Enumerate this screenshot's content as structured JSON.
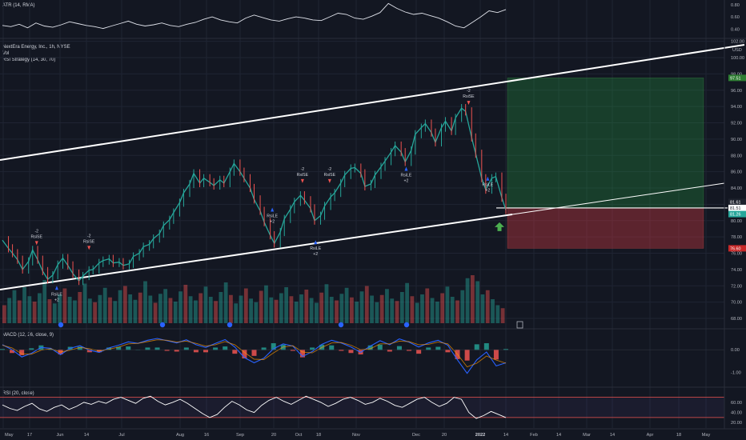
{
  "chart_data": {
    "type": "line",
    "symbol": "NextEra Energy, Inc., 1h, NYSE",
    "currency": "USD",
    "overlays": [
      "Vol",
      "RSI Strategy (14, 30, 70)"
    ],
    "price_axis": {
      "ticks": [
        "102.00",
        "100.00",
        "98.00",
        "96.00",
        "94.00",
        "92.00",
        "90.00",
        "88.00",
        "86.00",
        "84.00",
        "82.00",
        "80.00",
        "78.00",
        "76.00",
        "74.00",
        "72.00",
        "70.00",
        "68.00"
      ],
      "ylim": [
        66.5,
        103.2
      ]
    },
    "price_labels": {
      "target": "97.51",
      "entry_a": "81.61",
      "entry_b": "81.51",
      "current": "81.26",
      "stop": "76.60"
    },
    "time_axis": [
      "May",
      "17",
      "Jun",
      "14",
      "Jul",
      "Aug",
      "16",
      "Sep",
      "20",
      "Oct",
      "18",
      "Nov",
      "Dec",
      "20",
      "2022",
      "14",
      "Feb",
      "14",
      "Mar",
      "14",
      "Apr",
      "18",
      "May"
    ],
    "price_series": [
      {
        "t": 0,
        "v": 77.6
      },
      {
        "t": 0.6,
        "v": 76.6
      },
      {
        "t": 1,
        "v": 76.0
      },
      {
        "t": 1.5,
        "v": 75.2
      },
      {
        "t": 2,
        "v": 74.0
      },
      {
        "t": 2.6,
        "v": 75.0
      },
      {
        "t": 3,
        "v": 76.4
      },
      {
        "t": 3.5,
        "v": 75.2
      },
      {
        "t": 4,
        "v": 73.8
      },
      {
        "t": 4.5,
        "v": 72.8
      },
      {
        "t": 5,
        "v": 73.3
      },
      {
        "t": 5.5,
        "v": 74.6
      },
      {
        "t": 6,
        "v": 75.4
      },
      {
        "t": 6.5,
        "v": 74.5
      },
      {
        "t": 7,
        "v": 73.5
      },
      {
        "t": 7.6,
        "v": 72.6
      },
      {
        "t": 8,
        "v": 73.2
      },
      {
        "t": 8.6,
        "v": 73.9
      },
      {
        "t": 9,
        "v": 74.0
      },
      {
        "t": 9.6,
        "v": 74.8
      },
      {
        "t": 10,
        "v": 75.1
      },
      {
        "t": 10.6,
        "v": 75.3
      },
      {
        "t": 11,
        "v": 74.8
      },
      {
        "t": 11.6,
        "v": 74.9
      },
      {
        "t": 12,
        "v": 74.5
      },
      {
        "t": 12.6,
        "v": 74.7
      },
      {
        "t": 13,
        "v": 75.6
      },
      {
        "t": 13.6,
        "v": 76.0
      },
      {
        "t": 14,
        "v": 76.8
      },
      {
        "t": 14.6,
        "v": 77.1
      },
      {
        "t": 15,
        "v": 77.8
      },
      {
        "t": 15.6,
        "v": 78.4
      },
      {
        "t": 16,
        "v": 79.4
      },
      {
        "t": 16.6,
        "v": 80.1
      },
      {
        "t": 17,
        "v": 81.0
      },
      {
        "t": 17.6,
        "v": 82.2
      },
      {
        "t": 18,
        "v": 83.4
      },
      {
        "t": 18.6,
        "v": 84.5
      },
      {
        "t": 19,
        "v": 85.8
      },
      {
        "t": 19.6,
        "v": 84.6
      },
      {
        "t": 20,
        "v": 85.2
      },
      {
        "t": 20.6,
        "v": 84.7
      },
      {
        "t": 21,
        "v": 84.3
      },
      {
        "t": 21.6,
        "v": 85.0
      },
      {
        "t": 22,
        "v": 84.6
      },
      {
        "t": 22.6,
        "v": 86.0
      },
      {
        "t": 23,
        "v": 87.0
      },
      {
        "t": 23.6,
        "v": 86.0
      },
      {
        "t": 24,
        "v": 85.2
      },
      {
        "t": 24.6,
        "v": 84.0
      },
      {
        "t": 25,
        "v": 82.6
      },
      {
        "t": 25.6,
        "v": 81.2
      },
      {
        "t": 26,
        "v": 79.8
      },
      {
        "t": 26.6,
        "v": 78.2
      },
      {
        "t": 27,
        "v": 77.2
      },
      {
        "t": 27.6,
        "v": 78.6
      },
      {
        "t": 28,
        "v": 80.2
      },
      {
        "t": 28.6,
        "v": 81.4
      },
      {
        "t": 29,
        "v": 82.3
      },
      {
        "t": 29.6,
        "v": 83.1
      },
      {
        "t": 30,
        "v": 82.5
      },
      {
        "t": 30.6,
        "v": 81.5
      },
      {
        "t": 31,
        "v": 80.0
      },
      {
        "t": 31.6,
        "v": 80.6
      },
      {
        "t": 32,
        "v": 81.8
      },
      {
        "t": 32.6,
        "v": 82.9
      },
      {
        "t": 33,
        "v": 83.4
      },
      {
        "t": 33.6,
        "v": 84.6
      },
      {
        "t": 34,
        "v": 85.6
      },
      {
        "t": 34.6,
        "v": 86.4
      },
      {
        "t": 35,
        "v": 86.5
      },
      {
        "t": 35.6,
        "v": 85.8
      },
      {
        "t": 36,
        "v": 84.2
      },
      {
        "t": 36.6,
        "v": 84.5
      },
      {
        "t": 37,
        "v": 85.6
      },
      {
        "t": 37.6,
        "v": 86.6
      },
      {
        "t": 38,
        "v": 87.3
      },
      {
        "t": 38.6,
        "v": 88.4
      },
      {
        "t": 39,
        "v": 89.2
      },
      {
        "t": 39.6,
        "v": 88.4
      },
      {
        "t": 40,
        "v": 87.2
      },
      {
        "t": 40.6,
        "v": 88.6
      },
      {
        "t": 41,
        "v": 90.6
      },
      {
        "t": 41.6,
        "v": 91.4
      },
      {
        "t": 42,
        "v": 91.9
      },
      {
        "t": 42.6,
        "v": 90.8
      },
      {
        "t": 43,
        "v": 89.6
      },
      {
        "t": 43.6,
        "v": 91.4
      },
      {
        "t": 44,
        "v": 92.2
      },
      {
        "t": 44.6,
        "v": 91.0
      },
      {
        "t": 45,
        "v": 92.6
      },
      {
        "t": 45.6,
        "v": 93.8
      },
      {
        "t": 46,
        "v": 93.4
      },
      {
        "t": 46.6,
        "v": 90.2
      },
      {
        "t": 47,
        "v": 88.2
      },
      {
        "t": 47.6,
        "v": 85.2
      },
      {
        "t": 48,
        "v": 83.8
      },
      {
        "t": 48.6,
        "v": 85.2
      },
      {
        "t": 49,
        "v": 85.4
      },
      {
        "t": 49.6,
        "v": 82.8
      },
      {
        "t": 50,
        "v": 81.3
      }
    ],
    "signals": [
      {
        "label": "-2\nRsiSE",
        "kind": "short",
        "t": 3.4,
        "v": 77.0
      },
      {
        "label": "RsiLE\n+2",
        "kind": "long",
        "t": 5.4,
        "v": 72.0
      },
      {
        "label": "-2\nRsiSE",
        "kind": "short",
        "t": 8.6,
        "v": 76.4
      },
      {
        "label": "RsiLE\n+2",
        "kind": "long",
        "t": 26.8,
        "v": 81.6
      },
      {
        "label": "-2\nRsiSE",
        "kind": "short",
        "t": 29.8,
        "v": 84.6
      },
      {
        "label": "RsiLE\n+2",
        "kind": "long",
        "t": 31.1,
        "v": 77.6
      },
      {
        "label": "-2\nRsiSE",
        "kind": "short",
        "t": 32.5,
        "v": 84.6
      },
      {
        "label": "RsiLE\n+2",
        "kind": "long",
        "t": 40.1,
        "v": 86.6
      },
      {
        "label": "-2\nRsiSE",
        "kind": "short",
        "t": 46.3,
        "v": 94.2
      },
      {
        "label": "RsiLE\n+2",
        "kind": "long",
        "t": 48.2,
        "v": 85.4
      }
    ],
    "long_position": {
      "entry": 81.55,
      "target": 97.51,
      "stop": 76.6
    },
    "atr_pane": {
      "title": "ATR (14, RMA)",
      "ticks": [
        "0.80",
        "0.60",
        "0.40"
      ],
      "ylim": [
        0.3,
        0.85
      ],
      "values": [
        0.46,
        0.44,
        0.48,
        0.42,
        0.5,
        0.45,
        0.43,
        0.47,
        0.52,
        0.49,
        0.46,
        0.44,
        0.41,
        0.45,
        0.49,
        0.53,
        0.48,
        0.45,
        0.47,
        0.5,
        0.46,
        0.44,
        0.48,
        0.51,
        0.56,
        0.6,
        0.55,
        0.52,
        0.5,
        0.58,
        0.63,
        0.59,
        0.55,
        0.53,
        0.57,
        0.6,
        0.58,
        0.55,
        0.54,
        0.6,
        0.66,
        0.64,
        0.58,
        0.56,
        0.61,
        0.67,
        0.82,
        0.74,
        0.68,
        0.64,
        0.66,
        0.62,
        0.58,
        0.52,
        0.45,
        0.42,
        0.51,
        0.6,
        0.7,
        0.67,
        0.72
      ]
    },
    "macd_pane": {
      "title": "MACD (12, 26, close, 9)",
      "ticks": [
        "0.00",
        "-1.00"
      ],
      "ylim": [
        -1.45,
        0.75
      ],
      "macd": [
        0.22,
        0.0,
        -0.32,
        -0.16,
        0.1,
        0.06,
        -0.22,
        0.06,
        0.18,
        -0.02,
        -0.12,
        0.08,
        0.2,
        0.35,
        0.28,
        0.42,
        0.5,
        0.4,
        0.3,
        0.44,
        0.22,
        0.1,
        0.28,
        0.45,
        0.12,
        -0.35,
        -0.58,
        -0.38,
        0.04,
        0.26,
        0.16,
        -0.3,
        -0.08,
        0.24,
        0.42,
        0.3,
        0.12,
        -0.12,
        0.16,
        0.4,
        0.22,
        0.48,
        0.34,
        0.12,
        0.3,
        0.42,
        0.2,
        -0.45,
        -1.05,
        -0.45,
        -0.1,
        -0.72,
        -0.58
      ],
      "signal": [
        0.2,
        0.08,
        -0.18,
        -0.2,
        -0.02,
        0.04,
        -0.1,
        -0.02,
        0.1,
        0.04,
        -0.06,
        0.02,
        0.12,
        0.26,
        0.28,
        0.36,
        0.44,
        0.42,
        0.34,
        0.38,
        0.28,
        0.16,
        0.22,
        0.36,
        0.22,
        -0.12,
        -0.42,
        -0.44,
        -0.14,
        0.12,
        0.18,
        -0.1,
        -0.14,
        0.1,
        0.3,
        0.32,
        0.2,
        0.0,
        0.04,
        0.26,
        0.26,
        0.38,
        0.36,
        0.22,
        0.24,
        0.34,
        0.26,
        -0.2,
        -0.76,
        -0.6,
        -0.28,
        -0.46,
        -0.6
      ]
    },
    "rsi_pane": {
      "title": "RSI (20, close)",
      "ticks": [
        "60.00",
        "40.00",
        "20.00"
      ],
      "ylim": [
        14,
        82
      ],
      "bands": [
        70,
        30
      ],
      "values": [
        55,
        48,
        44,
        52,
        58,
        47,
        42,
        50,
        55,
        46,
        52,
        60,
        56,
        62,
        58,
        66,
        70,
        64,
        58,
        68,
        72,
        62,
        55,
        60,
        66,
        58,
        48,
        38,
        30,
        36,
        50,
        62,
        55,
        45,
        40,
        54,
        64,
        70,
        62,
        56,
        64,
        72,
        66,
        60,
        52,
        58,
        66,
        70,
        64,
        56,
        60,
        68,
        62,
        54,
        50,
        58,
        66,
        70,
        60,
        52,
        58,
        70,
        66,
        40,
        28,
        34,
        42,
        36,
        30
      ]
    },
    "volume": [
      30,
      42,
      55,
      38,
      60,
      45,
      36,
      50,
      72,
      40,
      33,
      48,
      58,
      44,
      38,
      52,
      66,
      41,
      35,
      47,
      59,
      43,
      37,
      55,
      62,
      48,
      39,
      51,
      70,
      46,
      34,
      49,
      57,
      42,
      36,
      53,
      64,
      45,
      38,
      50,
      61,
      44,
      37,
      52,
      68,
      47,
      33,
      46,
      58,
      41,
      35,
      54,
      63,
      43,
      39,
      50,
      60,
      45,
      36,
      48,
      56,
      42,
      34,
      51,
      65,
      44,
      38,
      49,
      59,
      43,
      36,
      53,
      62,
      46,
      35,
      47,
      57,
      41,
      37,
      52,
      67,
      45,
      34,
      48,
      58,
      42,
      36,
      50,
      61,
      44,
      38,
      55,
      75,
      80,
      70,
      48,
      55,
      40,
      30,
      25
    ]
  }
}
